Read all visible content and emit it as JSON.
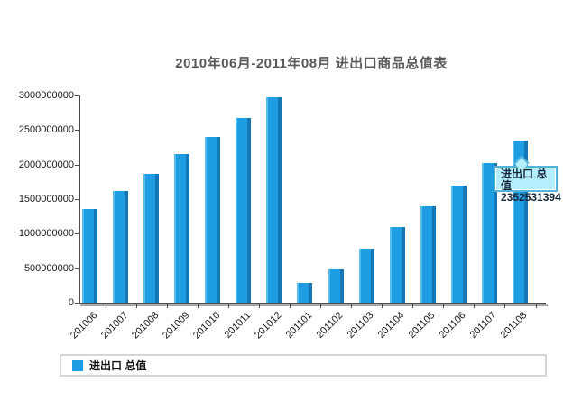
{
  "chart_data": {
    "type": "bar",
    "title": "2010年06月-2011年08月 进出口商品总值表",
    "categories": [
      "201006",
      "201007",
      "201008",
      "201009",
      "201010",
      "201011",
      "201012",
      "201101",
      "201102",
      "201103",
      "201104",
      "201105",
      "201106",
      "201107",
      "201108"
    ],
    "series": [
      {
        "name": "进出口 总值",
        "values": [
          1350000000,
          1620000000,
          1870000000,
          2150000000,
          2400000000,
          2680000000,
          2970000000,
          290000000,
          480000000,
          780000000,
          1090000000,
          1400000000,
          1700000000,
          2020000000,
          2352531394
        ]
      }
    ],
    "xlabel": "",
    "ylabel": "",
    "ylim": [
      0,
      3000000000
    ],
    "ytick_step": 500000000,
    "yticks": [
      "0",
      "500000000",
      "1000000000",
      "1500000000",
      "2000000000",
      "2500000000",
      "3000000000"
    ],
    "grid": false,
    "legend_position": "bottom",
    "bar_color": "#1e9de3",
    "bar_color_light": "#55bdee",
    "bar_color_dark": "#1478b6"
  },
  "tooltip": {
    "series_label": "进出口 总值",
    "value": "2352531394",
    "category": "201108",
    "fill_color": "#b5efff",
    "border_color": "#52b4dc"
  },
  "legend": {
    "label": "进出口 总值",
    "swatch_color": "#1e9de3"
  }
}
